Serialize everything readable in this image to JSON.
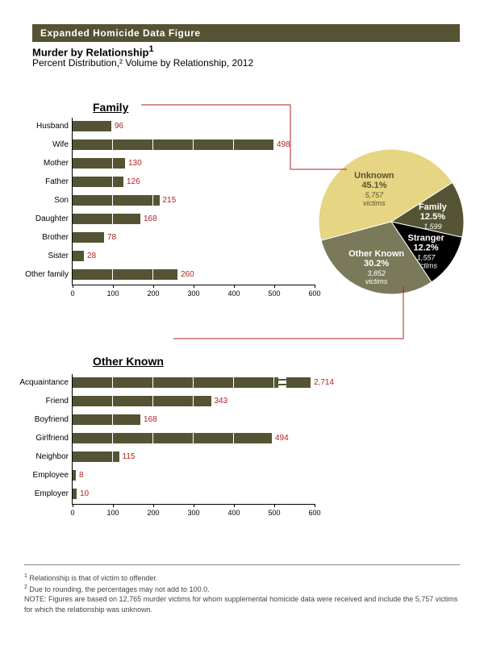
{
  "header": {
    "title": "Expanded Homicide Data Figure",
    "sub1": "Murder by Relationship",
    "sub2": "Percent Distribution,² Volume by Relationship, 2012"
  },
  "colors": {
    "bar": "#545333",
    "value": "#b22222",
    "pie_unknown": "#e6d582",
    "pie_family": "#545333",
    "pie_stranger": "#000000",
    "pie_other": "#7a795a",
    "connector": "#b22222"
  },
  "family_chart": {
    "title": "Family",
    "x_max": 600,
    "tick_step": 100,
    "bars": [
      {
        "label": "Husband",
        "value": 96
      },
      {
        "label": "Wife",
        "value": 498
      },
      {
        "label": "Mother",
        "value": 130
      },
      {
        "label": "Father",
        "value": 126
      },
      {
        "label": "Son",
        "value": 215
      },
      {
        "label": "Daughter",
        "value": 168
      },
      {
        "label": "Brother",
        "value": 78
      },
      {
        "label": "Sister",
        "value": 28
      },
      {
        "label": "Other family",
        "value": 260
      }
    ]
  },
  "other_chart": {
    "title": "Other Known",
    "x_max": 600,
    "tick_step": 100,
    "bars": [
      {
        "label": "Acquaintance",
        "value": 2714,
        "clip_at": 590,
        "break": true
      },
      {
        "label": "Friend",
        "value": 343
      },
      {
        "label": "Boyfriend",
        "value": 168
      },
      {
        "label": "Girlfriend",
        "value": 494
      },
      {
        "label": "Neighbor",
        "value": 115
      },
      {
        "label": "Employee",
        "value": 8
      },
      {
        "label": "Employer",
        "value": 10
      }
    ]
  },
  "pie": {
    "slices": [
      {
        "name": "Unknown",
        "pct": 45.1,
        "victims": "5,757",
        "color": "#e6d582",
        "text": "#545333"
      },
      {
        "name": "Family",
        "pct": 12.5,
        "victims": "1,599",
        "color": "#545333",
        "text": "#ffffff"
      },
      {
        "name": "Stranger",
        "pct": 12.2,
        "victims": "1,557",
        "color": "#000000",
        "text": "#ffffff"
      },
      {
        "name": "Other Known",
        "pct": 30.2,
        "victims": "3,852",
        "color": "#7a795a",
        "text": "#ffffff"
      }
    ]
  },
  "footnotes": {
    "f1": "Relationship is that of victim to offender.",
    "f2": "Due to rounding, the percentages may not add to 100.0.",
    "note": "NOTE:  Figures are based on 12,765 murder victims for whom supplemental homicide data were received and include the 5,757 victims for which the relationship was unknown."
  }
}
